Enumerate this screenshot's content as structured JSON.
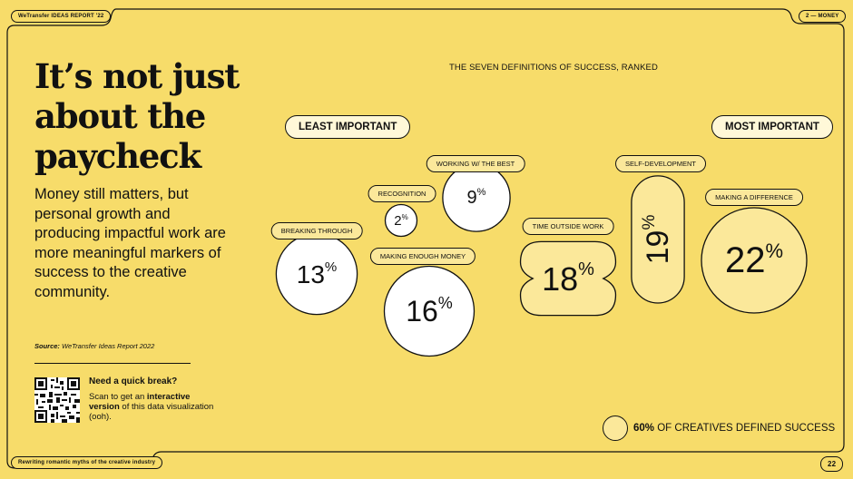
{
  "header": {
    "brand_tag": "WeTransfer IDEAS REPORT '22",
    "section_tag": "2 — MONEY"
  },
  "footer": {
    "tagline": "Rewriting romantic myths of the creative industry",
    "page_number": "22"
  },
  "headline": "It’s not just about the paycheck",
  "subtext": "Money still matters, but personal growth and producing impactful work are more meaningful markers of success to the creative community.",
  "source": {
    "label": "Source:",
    "text": "WeTransfer Ideas Report 2022"
  },
  "qr_box": {
    "title": "Need a quick break?",
    "desc_pre": "Scan to get an ",
    "desc_bold": "interactive version",
    "desc_post": " of this data visualization (ooh)."
  },
  "chart_data": {
    "type": "bubble",
    "title": "THE SEVEN DEFINITIONS OF SUCCESS, RANKED",
    "scale_left": "LEAST IMPORTANT",
    "scale_right": "MOST IMPORTANT",
    "unit": "%",
    "categories": [
      "BREAKING THROUGH",
      "RECOGNITION",
      "MAKING ENOUGH MONEY",
      "WORKING W/ THE BEST",
      "TIME OUTSIDE WORK",
      "SELF-DEVELOPMENT",
      "MAKING A DIFFERENCE"
    ],
    "values": [
      13,
      2,
      16,
      9,
      18,
      19,
      22
    ],
    "legend": {
      "highlight_bold": "60%",
      "highlight_text": " OF CREATIVES DEFINED SUCCESS"
    },
    "colors": {
      "background": "#f7dc6a",
      "bubble_white": "#ffffff",
      "bubble_yellow": "#fbe89a",
      "ink": "#111111"
    }
  }
}
